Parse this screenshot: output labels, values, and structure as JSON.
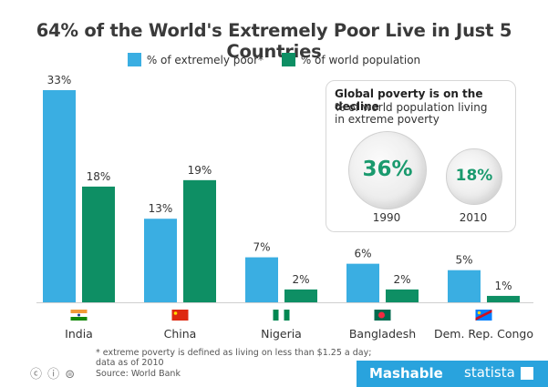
{
  "title": "64% of the World's Extremely Poor Live in Just 5 Countries",
  "legend": [
    {
      "label": "% of extremely poor*",
      "color": "#3aaee2"
    },
    {
      "label": "% of world population",
      "color": "#0e8f64"
    }
  ],
  "chart_data": {
    "type": "bar",
    "categories": [
      "India",
      "China",
      "Nigeria",
      "Bangladesh",
      "Dem. Rep. Congo"
    ],
    "series": [
      {
        "name": "% of extremely poor*",
        "values": [
          33,
          13,
          7,
          6,
          5
        ],
        "labels": [
          "33%",
          "13%",
          "7%",
          "6%",
          "5%"
        ],
        "color": "#3aaee2"
      },
      {
        "name": "% of world population",
        "values": [
          18,
          19,
          2,
          2,
          1
        ],
        "labels": [
          "18%",
          "19%",
          "2%",
          "2%",
          "1%"
        ],
        "color": "#0e8f64"
      }
    ],
    "title": "64% of the World's Extremely Poor Live in Just 5 Countries",
    "xlabel": "",
    "ylabel": "",
    "ylim": [
      0,
      35
    ],
    "grid": false,
    "legend_position": "top-center"
  },
  "flags": [
    {
      "country": "India",
      "icon": "india-flag-icon"
    },
    {
      "country": "China",
      "icon": "china-flag-icon"
    },
    {
      "country": "Nigeria",
      "icon": "nigeria-flag-icon"
    },
    {
      "country": "Bangladesh",
      "icon": "bangladesh-flag-icon"
    },
    {
      "country": "Dem. Rep. Congo",
      "icon": "congo-flag-icon"
    }
  ],
  "inset": {
    "title": "Global poverty is on the decline",
    "subtitle": "% of world population living in extreme poverty",
    "points": [
      {
        "year": "1990",
        "value": 36,
        "label": "36%"
      },
      {
        "year": "2010",
        "value": 18,
        "label": "18%"
      }
    ],
    "icon": "globe-icon"
  },
  "footnote": "* extreme poverty is defined as living on less than $1.25 a day; data as of 2010",
  "source": "Source: World Bank",
  "license_icons": "cc-by-nd-icons",
  "brand": {
    "mashable": "Mashable",
    "statista": "statista"
  }
}
